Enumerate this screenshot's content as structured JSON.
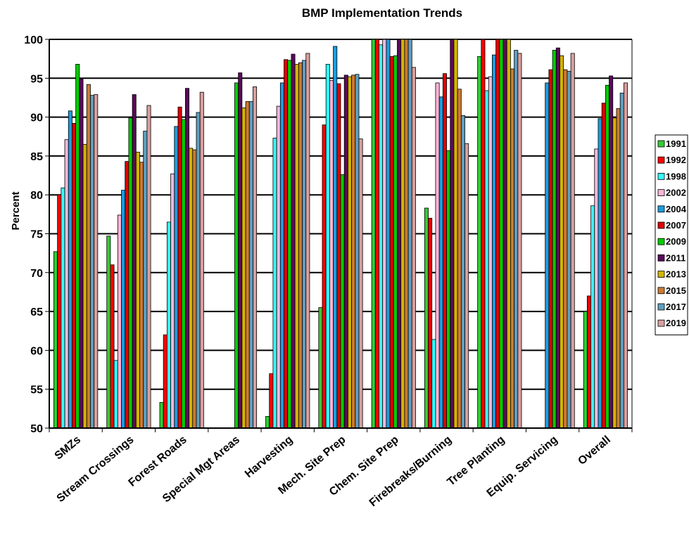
{
  "chart_data": {
    "type": "bar",
    "title": "BMP Implementation Trends",
    "xlabel": "",
    "ylabel": "Percent",
    "ylim": [
      50,
      100
    ],
    "yticks": [
      50,
      55,
      60,
      65,
      70,
      75,
      80,
      85,
      90,
      95,
      100
    ],
    "grid": true,
    "legend_position": "right",
    "categories": [
      "SMZs",
      "Stream Crossings",
      "Forest Roads",
      "Special Mgt Areas",
      "Harvesting",
      "Mech. Site Prep",
      "Chem. Site Prep",
      "Firebreaks/Burning",
      "Tree Planting",
      "Equip. Servicing",
      "Overall"
    ],
    "series": [
      {
        "name": "1991",
        "color": "#33cc33",
        "values": [
          72.7,
          74.7,
          53.3,
          null,
          51.5,
          65.5,
          100,
          78.3,
          97.8,
          null,
          65.0
        ]
      },
      {
        "name": "1992",
        "color": "#ff0000",
        "values": [
          80.0,
          71.0,
          62.0,
          null,
          57.0,
          89.0,
          100,
          77.0,
          100,
          null,
          67.0
        ]
      },
      {
        "name": "1998",
        "color": "#33ffff",
        "values": [
          80.9,
          58.7,
          76.5,
          null,
          87.3,
          96.8,
          99.3,
          61.4,
          93.4,
          null,
          78.6
        ]
      },
      {
        "name": "2002",
        "color": "#ffb6d9",
        "values": [
          87.1,
          77.4,
          82.7,
          null,
          91.4,
          94.7,
          100,
          94.4,
          95.2,
          null,
          85.9
        ]
      },
      {
        "name": "2004",
        "color": "#1a9de0",
        "values": [
          90.8,
          80.6,
          88.8,
          null,
          94.4,
          99.1,
          100,
          92.6,
          98.0,
          94.4,
          89.8
        ]
      },
      {
        "name": "2007",
        "color": "#e00000",
        "values": [
          89.2,
          84.3,
          91.3,
          null,
          97.4,
          94.3,
          97.8,
          95.6,
          100,
          96.1,
          91.8
        ]
      },
      {
        "name": "2009",
        "color": "#00cc00",
        "values": [
          96.8,
          89.9,
          89.7,
          94.4,
          97.3,
          82.6,
          97.9,
          85.7,
          100,
          98.6,
          94.1
        ]
      },
      {
        "name": "2011",
        "color": "#5a0a5a",
        "values": [
          94.9,
          92.9,
          93.7,
          95.7,
          98.1,
          95.4,
          100,
          100,
          100,
          98.9,
          95.3
        ]
      },
      {
        "name": "2013",
        "color": "#d4b400",
        "values": [
          86.5,
          85.5,
          86.0,
          91.2,
          96.8,
          95.2,
          100,
          100,
          100,
          97.9,
          89.9
        ]
      },
      {
        "name": "2015",
        "color": "#cc7a33",
        "values": [
          94.2,
          84.2,
          85.8,
          92.0,
          97.0,
          95.4,
          100,
          93.6,
          96.2,
          96.1,
          91.1
        ]
      },
      {
        "name": "2017",
        "color": "#5f9fc0",
        "values": [
          92.8,
          88.2,
          90.6,
          92.0,
          97.3,
          95.5,
          100,
          90.2,
          98.6,
          95.9,
          93.1
        ]
      },
      {
        "name": "2019",
        "color": "#d9a0a0",
        "values": [
          92.9,
          91.5,
          93.2,
          93.9,
          98.2,
          87.2,
          96.4,
          86.6,
          98.2,
          98.2,
          94.4
        ]
      }
    ]
  }
}
